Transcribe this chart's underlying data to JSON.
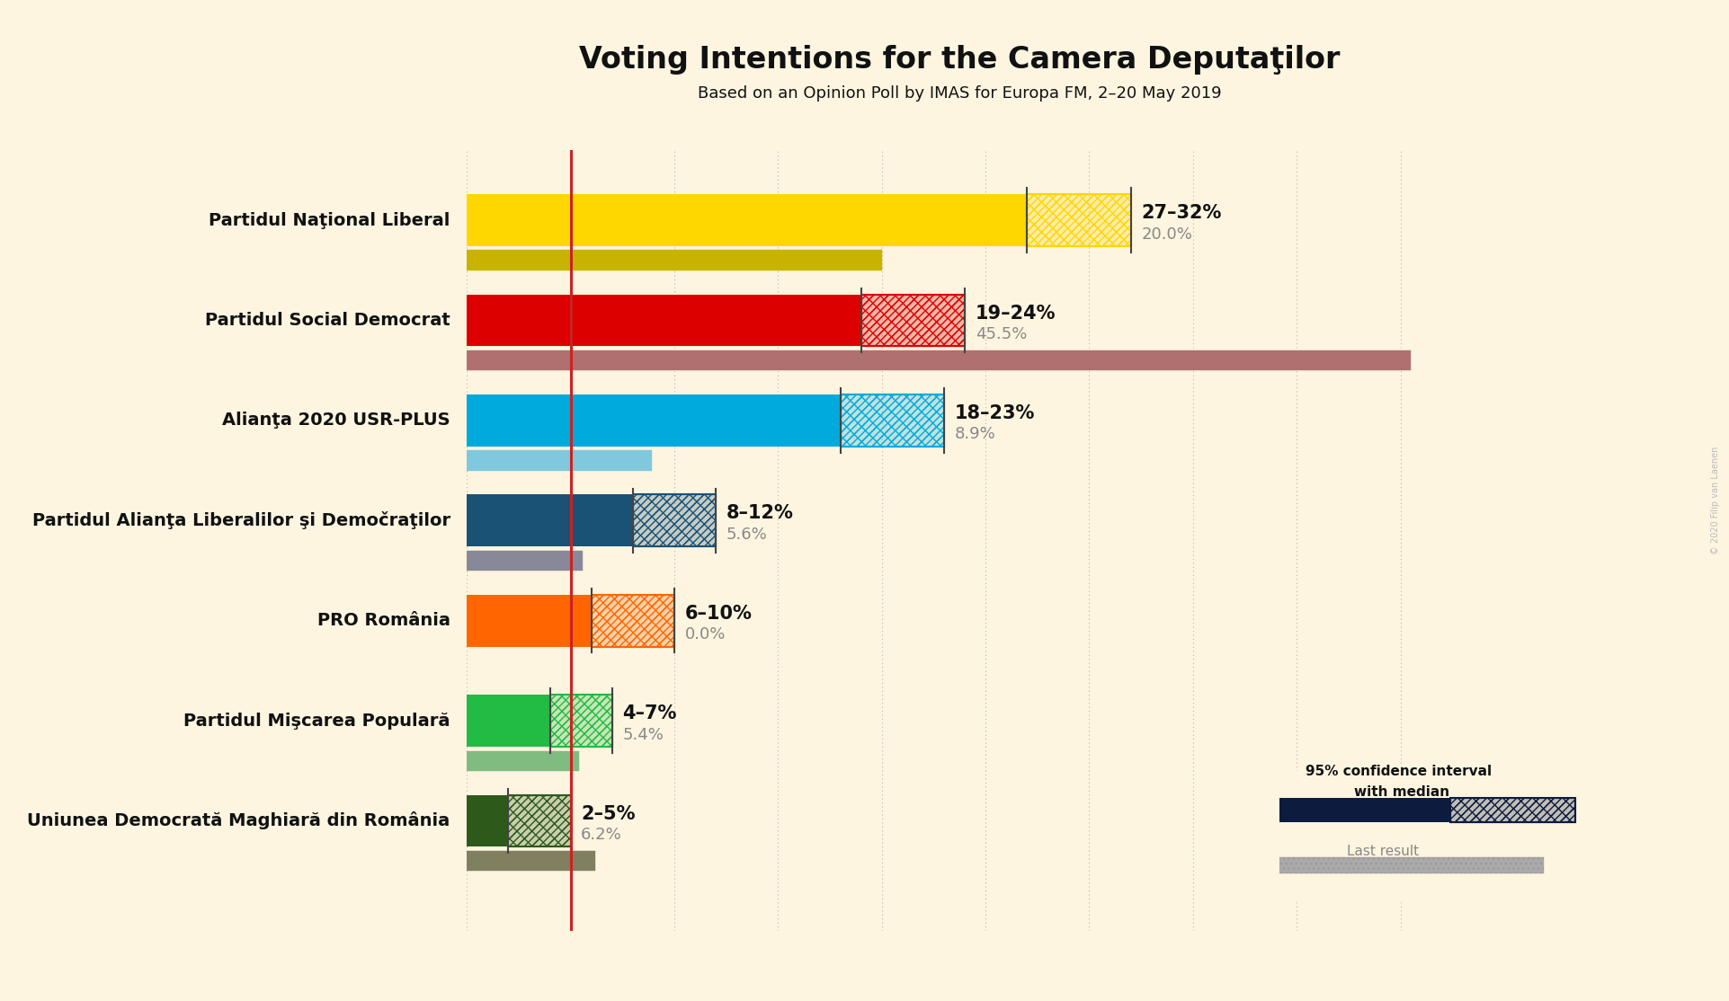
{
  "title": "Voting Intentions for the Camera Deputaţilor",
  "subtitle": "Based on an Opinion Poll by IMAS for Europa FM, 2–20 May 2019",
  "background_color": "#fdf5e0",
  "parties": [
    {
      "name": "Partidul Naţional Liberal",
      "ci_low": 27,
      "ci_high": 32,
      "last_result": 20.0,
      "color": "#FFD700",
      "last_color": "#c8b400",
      "label": "27–32%",
      "last_label": "20.0%"
    },
    {
      "name": "Partidul Social Democrat",
      "ci_low": 19,
      "ci_high": 24,
      "last_result": 45.5,
      "color": "#DD0000",
      "last_color": "#b07070",
      "label": "19–24%",
      "last_label": "45.5%"
    },
    {
      "name": "Alianţa 2020 USR-PLUS",
      "ci_low": 18,
      "ci_high": 23,
      "last_result": 8.9,
      "color": "#00AADD",
      "last_color": "#80c8dd",
      "label": "18–23%",
      "last_label": "8.9%"
    },
    {
      "name": "Partidul Alianţa Liberalilor şi Demočraţilor",
      "ci_low": 8,
      "ci_high": 12,
      "last_result": 5.6,
      "color": "#1a5276",
      "last_color": "#888899",
      "label": "8–12%",
      "last_label": "5.6%"
    },
    {
      "name": "PRO România",
      "ci_low": 6,
      "ci_high": 10,
      "last_result": 0.0,
      "color": "#FF6600",
      "last_color": "#c09060",
      "label": "6–10%",
      "last_label": "0.0%"
    },
    {
      "name": "Partidul Mişcarea Populară",
      "ci_low": 4,
      "ci_high": 7,
      "last_result": 5.4,
      "color": "#22BB44",
      "last_color": "#80bb80",
      "label": "4–7%",
      "last_label": "5.4%"
    },
    {
      "name": "Uniunea Democrată Maghiară din România",
      "ci_low": 2,
      "ci_high": 5,
      "last_result": 6.2,
      "color": "#2d5a1b",
      "last_color": "#808060",
      "label": "2–5%",
      "last_label": "6.2%"
    }
  ],
  "threshold_line": 5,
  "threshold_color": "#cc2222",
  "xmax": 50,
  "bar_height": 0.52,
  "last_bar_height": 0.2,
  "label_fontsize": 15,
  "party_fontsize": 14,
  "title_fontsize": 24,
  "subtitle_fontsize": 13,
  "grid_color": "#999999",
  "watermark": "© 2020 Filip van Laenen"
}
